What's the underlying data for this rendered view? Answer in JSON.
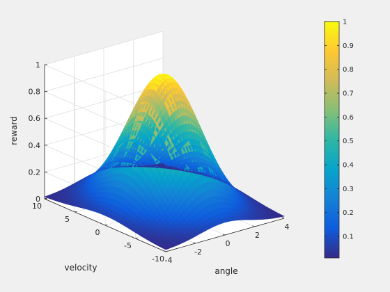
{
  "chart_data": {
    "type": "surface",
    "surface_function": "exp(-(angle^2/a^2 + velocity^2/b^2)) Gaussian reward surface, peak 1 at (0,0)",
    "x": {
      "label": "angle",
      "range": [
        -4,
        4
      ],
      "ticks": [
        -4,
        -2,
        0,
        2,
        4
      ],
      "tick_labels": [
        "-4",
        "-2",
        "0",
        "2",
        "4"
      ]
    },
    "y": {
      "label": "velocity",
      "range": [
        -10,
        10
      ],
      "ticks": [
        -10,
        -5,
        0,
        5,
        10
      ],
      "tick_labels": [
        "-10",
        "-5",
        "0",
        "5",
        "10"
      ]
    },
    "z": {
      "label": "reward",
      "range": [
        0,
        1
      ],
      "ticks": [
        0,
        0.2,
        0.4,
        0.6,
        0.8,
        1
      ],
      "tick_labels": [
        "0",
        "0.2",
        "0.4",
        "0.6",
        "0.8",
        "1"
      ]
    },
    "surface": {
      "peak": {
        "angle": 0,
        "velocity": 0,
        "reward": 1
      },
      "angle_spread": 1.7,
      "velocity_spread": 4.5,
      "edge_value": 0.01
    },
    "colorbar": {
      "colormap": "parula",
      "range": [
        0.01,
        1
      ],
      "ticks": [
        0.1,
        0.2,
        0.3,
        0.4,
        0.5,
        0.6,
        0.7,
        0.8,
        0.9,
        1
      ],
      "tick_labels": [
        "0.1",
        "0.2",
        "0.3",
        "0.4",
        "0.5",
        "0.6",
        "0.7",
        "0.8",
        "0.9",
        "1"
      ]
    },
    "grid": true,
    "background_color": "#f0f0f0",
    "axes_color": "#ffffff"
  }
}
